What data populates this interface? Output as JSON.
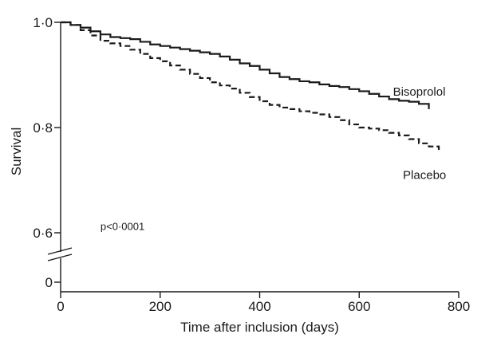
{
  "chart_data": {
    "type": "line",
    "title": "",
    "xlabel": "Time after inclusion (days)",
    "ylabel": "Survival",
    "xlim": [
      0,
      800
    ],
    "ylim": [
      0,
      1.0
    ],
    "y_axis_break": true,
    "x_ticks": [
      0,
      200,
      400,
      600,
      800
    ],
    "x_tick_labels": [
      "0",
      "200",
      "400",
      "600",
      "800"
    ],
    "y_ticks": [
      0,
      0.6,
      0.8,
      1.0
    ],
    "y_tick_labels": [
      "0",
      "0·6",
      "0·8",
      "1·0"
    ],
    "grid": false,
    "legend": "none",
    "annotations": [
      {
        "text": "p<0·0001",
        "x": 80,
        "y": 0.605
      }
    ],
    "series": [
      {
        "name": "Bisoprolol",
        "style": "solid",
        "color": "#1a1a1a",
        "x": [
          0,
          20,
          40,
          60,
          80,
          100,
          120,
          140,
          160,
          180,
          200,
          220,
          240,
          260,
          280,
          300,
          320,
          340,
          360,
          380,
          400,
          420,
          440,
          460,
          480,
          500,
          520,
          540,
          560,
          580,
          600,
          620,
          640,
          660,
          680,
          700,
          720,
          740
        ],
        "y": [
          1.0,
          0.995,
          0.99,
          0.983,
          0.977,
          0.972,
          0.97,
          0.968,
          0.963,
          0.958,
          0.955,
          0.952,
          0.949,
          0.946,
          0.943,
          0.94,
          0.935,
          0.929,
          0.922,
          0.917,
          0.91,
          0.903,
          0.896,
          0.892,
          0.888,
          0.886,
          0.882,
          0.879,
          0.877,
          0.873,
          0.869,
          0.864,
          0.859,
          0.854,
          0.851,
          0.849,
          0.845,
          0.835
        ]
      },
      {
        "name": "Placebo",
        "style": "dashed",
        "color": "#1a1a1a",
        "x": [
          0,
          20,
          40,
          60,
          80,
          100,
          120,
          140,
          160,
          180,
          200,
          220,
          240,
          260,
          280,
          300,
          320,
          340,
          360,
          380,
          400,
          420,
          440,
          460,
          480,
          500,
          520,
          540,
          560,
          580,
          600,
          620,
          640,
          660,
          680,
          700,
          720,
          740,
          760
        ],
        "y": [
          1.0,
          0.995,
          0.985,
          0.975,
          0.965,
          0.96,
          0.955,
          0.948,
          0.94,
          0.932,
          0.926,
          0.918,
          0.91,
          0.902,
          0.894,
          0.886,
          0.88,
          0.874,
          0.866,
          0.858,
          0.85,
          0.843,
          0.838,
          0.835,
          0.831,
          0.828,
          0.825,
          0.82,
          0.814,
          0.806,
          0.8,
          0.798,
          0.795,
          0.79,
          0.785,
          0.778,
          0.77,
          0.764,
          0.752
        ]
      }
    ]
  }
}
